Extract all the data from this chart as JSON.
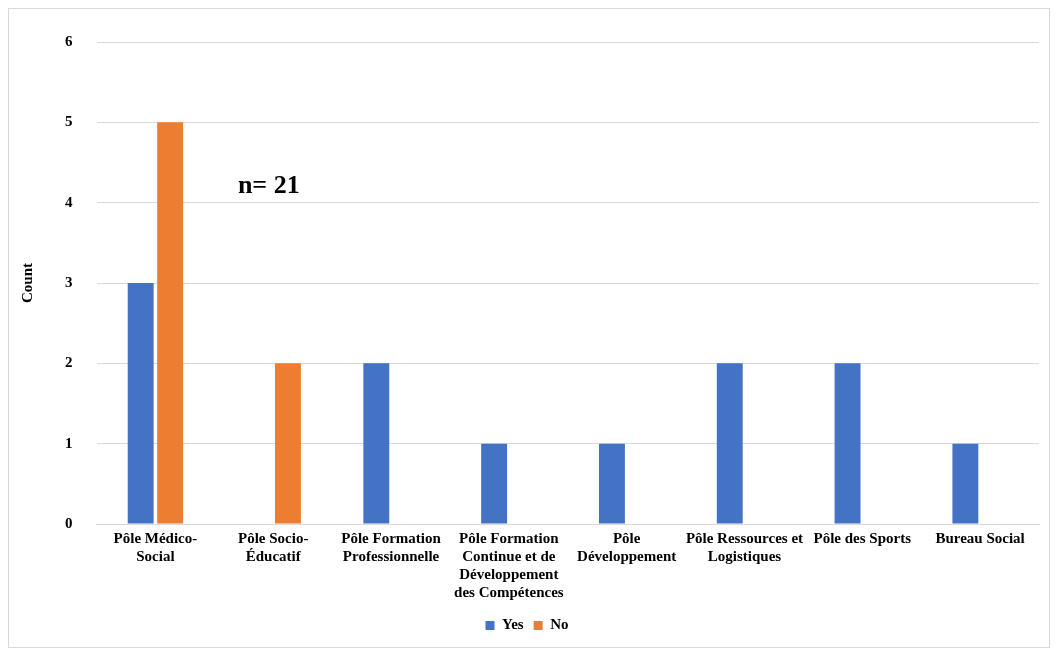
{
  "chart_data": {
    "type": "bar",
    "categories": [
      "Pôle Médico-Social",
      "Pôle Socio-Éducatif",
      "Pôle Formation Professionnelle",
      "Pôle Formation Continue et de Développement des Compétences",
      "Pôle Développement",
      "Pôle Ressources et Logistiques",
      "Pôle des Sports",
      "Bureau Social"
    ],
    "series": [
      {
        "name": "Yes",
        "color": "#4472c4",
        "values": [
          3,
          null,
          2,
          1,
          1,
          2,
          2,
          1
        ]
      },
      {
        "name": "No",
        "color": "#ed7d31",
        "values": [
          5,
          2,
          null,
          null,
          null,
          null,
          null,
          null
        ]
      }
    ],
    "ylabel": "Count",
    "ylim": [
      0,
      6
    ],
    "yticks": [
      0,
      1,
      2,
      3,
      4,
      5,
      6
    ],
    "grid": "y",
    "legend": "bottom",
    "annotations": [
      "n= 21"
    ]
  }
}
